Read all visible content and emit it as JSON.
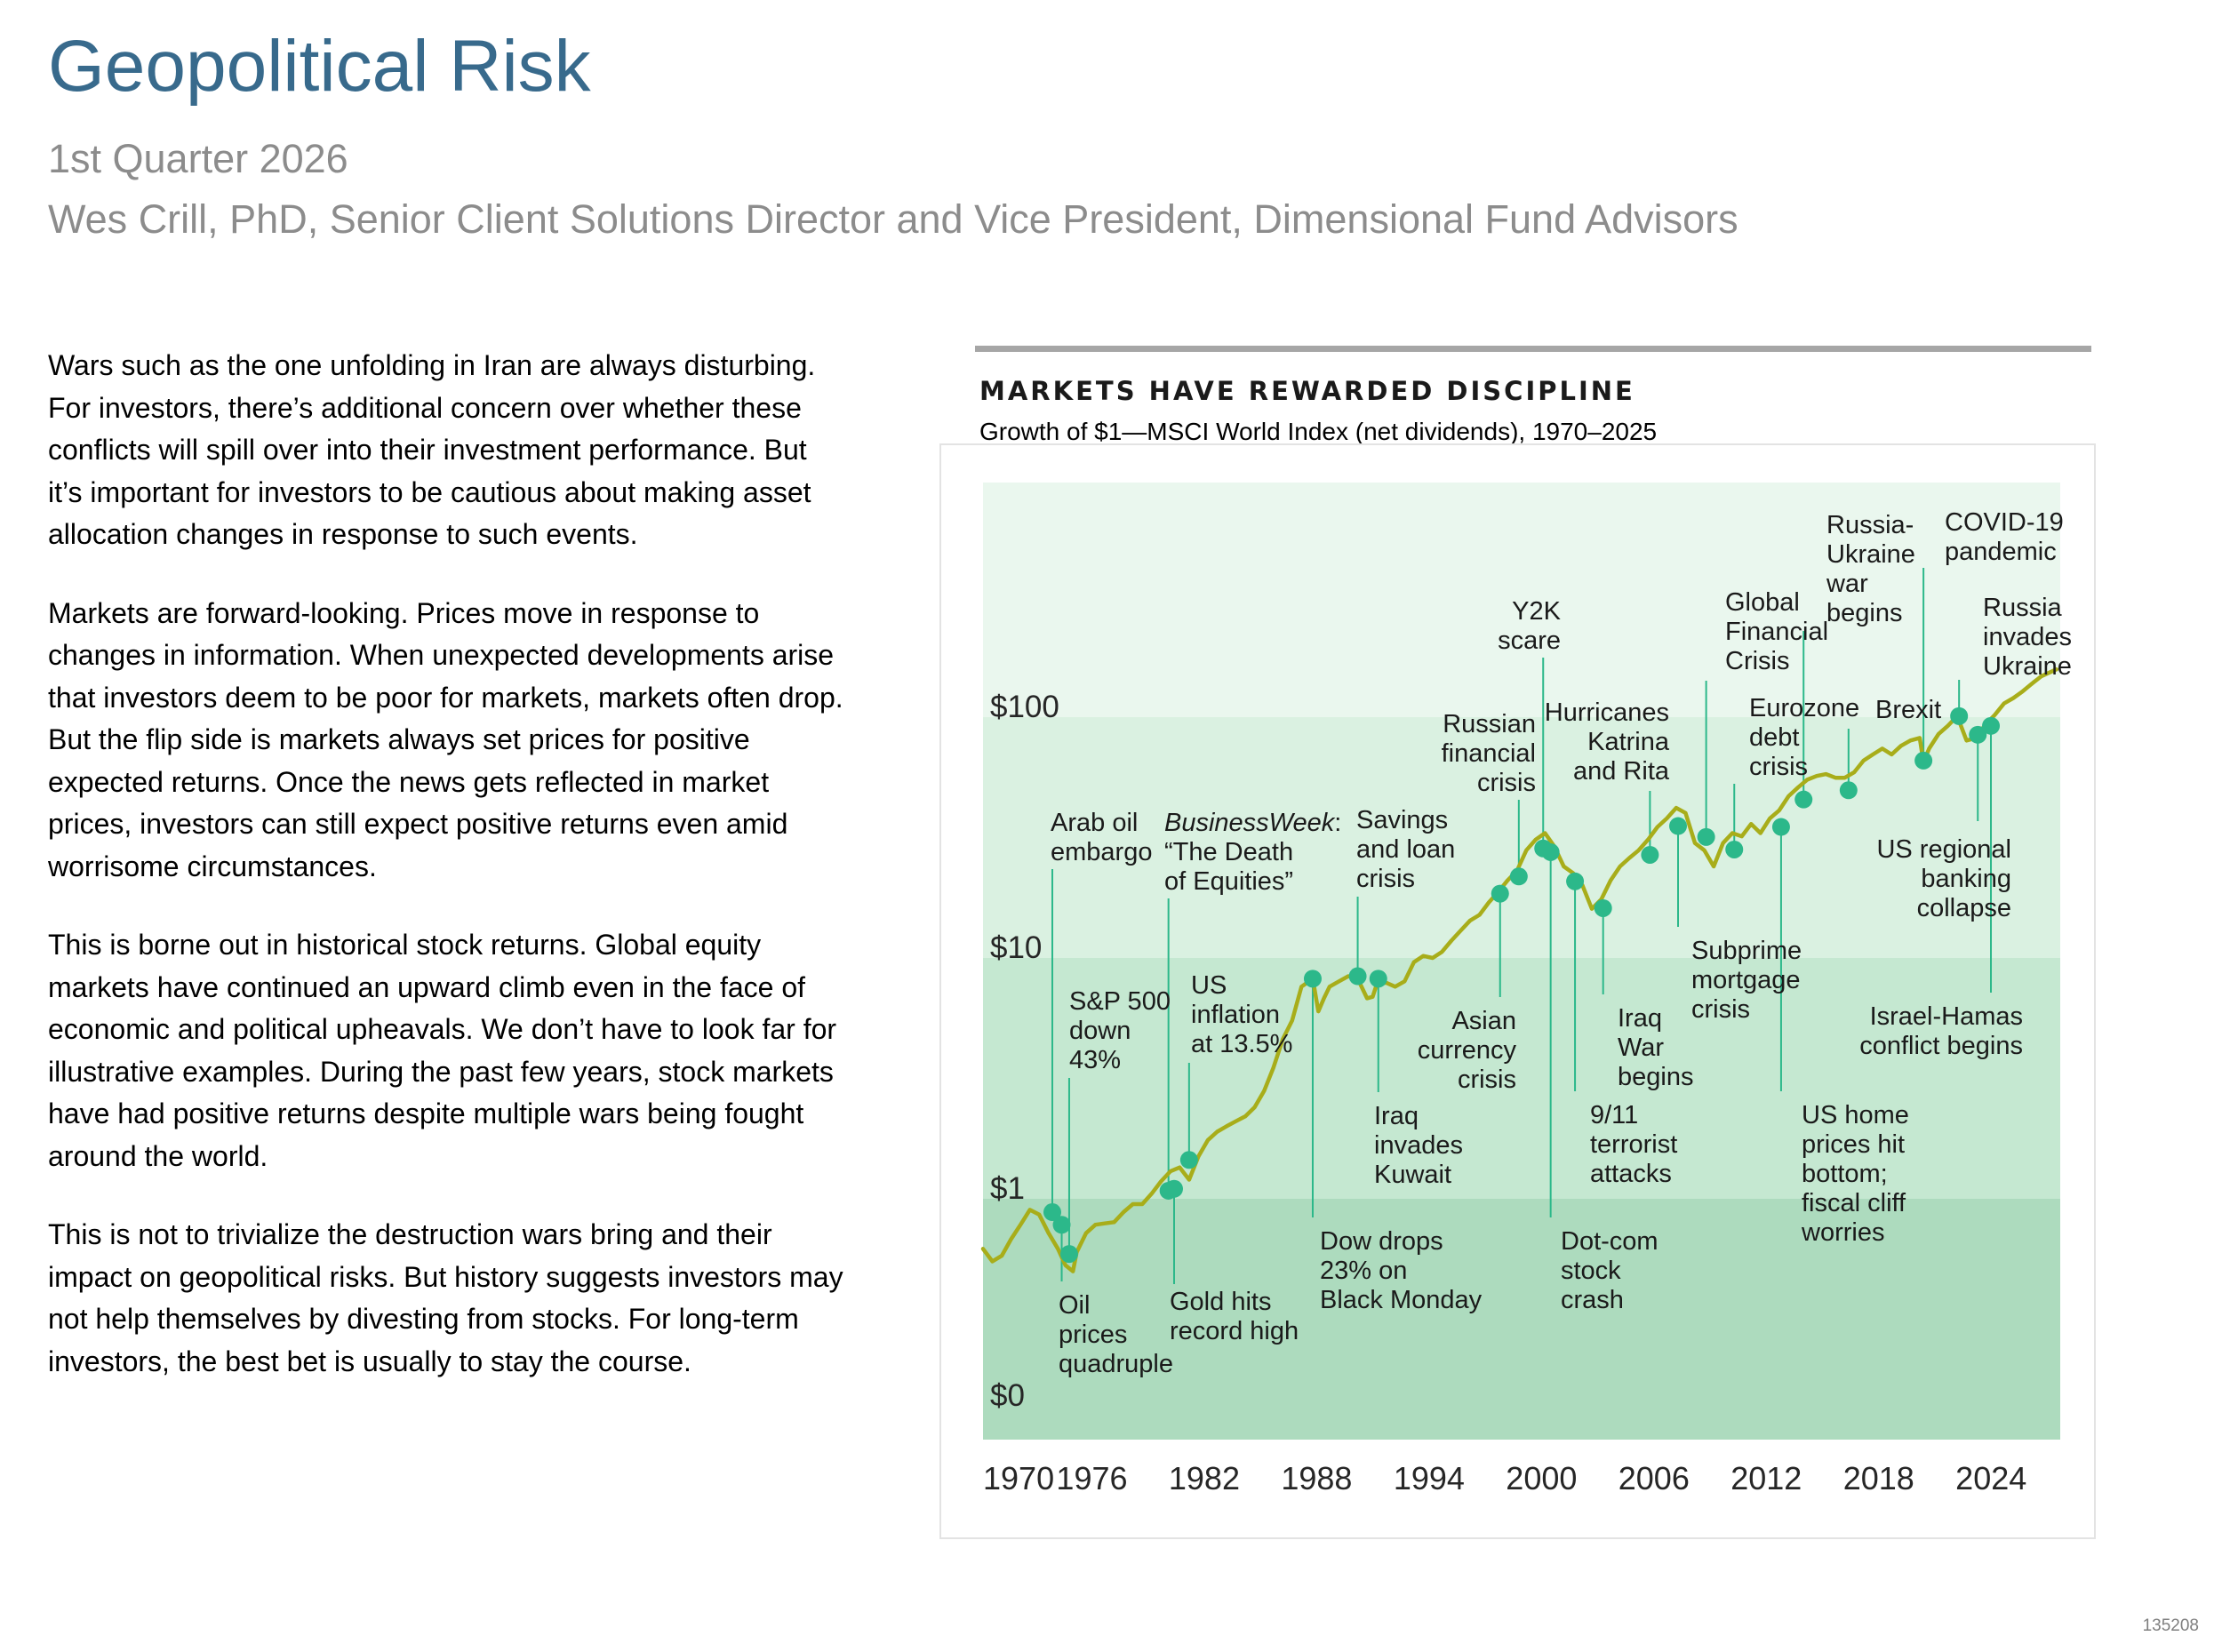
{
  "header": {
    "title": "Geopolitical Risk",
    "subtitle": "1st Quarter 2026",
    "byline": "Wes Crill, PhD, Senior Client Solutions Director and Vice President, Dimensional Fund Advisors"
  },
  "body": {
    "paragraphs": [
      "Wars such as the one unfolding in Iran are always disturbing. For investors, there’s additional concern over whether these conflicts will spill over into their investment performance. But it’s important for investors to be cautious about making asset allocation changes in response to such events.",
      "Markets are forward-looking. Prices move in response to changes in information. When unexpected developments arise that investors deem to be poor for markets, markets often drop. But the flip side is markets always set prices for positive expected returns. Once the news gets reflected in market prices, investors can still expect positive returns even amid worrisome circumstances.",
      "This is borne out in historical stock returns. Global equity markets have continued an upward climb even in the face of economic and political upheavals. We don’t have to look far for illustrative examples. During the past few years, stock markets have had positive returns despite multiple wars being fought around the world.",
      "This is not to trivialize the destruction wars bring and their impact on geopolitical risks. But history suggests investors may not help themselves by divesting from stocks. For long-term investors, the best bet is usually to stay the course."
    ]
  },
  "chart": {
    "heading": "MARKETS HAVE REWARDED DISCIPLINE",
    "caption": "Growth of $1—MSCI World Index (net dividends), 1970–2025"
  },
  "footer": {
    "code": "135208"
  },
  "colors": {
    "line": "#a8ad1a",
    "marker": "#2cb88a",
    "leader": "#2cb88a",
    "band_top": "#eaf7ee",
    "band_2": "#daf1e1",
    "band_3": "#c5e8d1",
    "band_4": "#addbbe"
  },
  "chart_data": {
    "type": "line",
    "title": "MARKETS HAVE REWARDED DISCIPLINE",
    "subtitle": "Growth of $1—MSCI World Index (net dividends), 1970–2025",
    "xlabel": "",
    "ylabel": "",
    "scale": "log",
    "xlim": [
      1970,
      2027.5
    ],
    "y_tick_labels": [
      "$0",
      "$1",
      "$10",
      "$100"
    ],
    "x_tick_labels": [
      "1970",
      "1976",
      "1982",
      "1988",
      "1994",
      "2000",
      "2006",
      "2012",
      "2018",
      "2024"
    ],
    "series": [
      {
        "name": "MSCI World Index (net dividends)",
        "x": [
          1970.0,
          1970.5,
          1971.0,
          1971.5,
          1972.0,
          1972.5,
          1973.0,
          1973.5,
          1974.0,
          1974.4,
          1974.8,
          1975.0,
          1975.5,
          1976.0,
          1976.5,
          1977.0,
          1977.5,
          1978.0,
          1978.5,
          1979.0,
          1979.5,
          1980.0,
          1980.5,
          1981.0,
          1981.5,
          1982.0,
          1982.5,
          1983.0,
          1983.5,
          1984.0,
          1984.5,
          1985.0,
          1985.5,
          1986.0,
          1986.5,
          1987.0,
          1987.6,
          1987.9,
          1988.2,
          1988.5,
          1989.0,
          1989.5,
          1990.0,
          1990.5,
          1990.8,
          1991.0,
          1991.5,
          1992.0,
          1992.5,
          1993.0,
          1993.5,
          1994.0,
          1994.5,
          1995.0,
          1995.5,
          1996.0,
          1996.5,
          1997.0,
          1997.5,
          1998.0,
          1998.5,
          1999.0,
          1999.5,
          2000.0,
          2000.5,
          2001.0,
          2001.5,
          2002.0,
          2002.5,
          2003.0,
          2003.5,
          2004.0,
          2004.5,
          2005.0,
          2005.5,
          2006.0,
          2006.5,
          2007.0,
          2007.5,
          2008.0,
          2008.5,
          2009.0,
          2009.5,
          2010.0,
          2010.5,
          2011.0,
          2011.5,
          2012.0,
          2012.5,
          2013.0,
          2013.5,
          2014.0,
          2014.5,
          2015.0,
          2015.5,
          2016.0,
          2016.5,
          2017.0,
          2017.5,
          2018.0,
          2018.5,
          2019.0,
          2019.5,
          2020.0,
          2020.2,
          2020.5,
          2021.0,
          2021.5,
          2022.0,
          2022.5,
          2023.0,
          2023.5,
          2024.0,
          2024.5,
          2025.0,
          2025.5,
          2026.0,
          2026.5,
          2027.3
        ],
        "values": [
          0.62,
          0.55,
          0.58,
          0.68,
          0.78,
          0.9,
          0.86,
          0.72,
          0.62,
          0.53,
          0.5,
          0.6,
          0.72,
          0.78,
          0.79,
          0.8,
          0.88,
          0.95,
          0.95,
          1.05,
          1.18,
          1.3,
          1.35,
          1.2,
          1.5,
          1.75,
          1.9,
          2.0,
          2.1,
          2.2,
          2.4,
          2.8,
          3.5,
          4.6,
          5.5,
          7.6,
          8.2,
          6.0,
          6.8,
          7.6,
          8.0,
          8.4,
          8.2,
          6.8,
          6.9,
          7.7,
          7.9,
          7.6,
          8.0,
          9.6,
          10.2,
          10.0,
          10.6,
          11.8,
          13.0,
          14.3,
          15.1,
          17.0,
          18.8,
          21.0,
          23.0,
          28.0,
          31.0,
          33.0,
          29.0,
          24.0,
          22.5,
          20.0,
          16.0,
          17.5,
          21.0,
          24.0,
          26.0,
          28.0,
          31.0,
          35.0,
          38.0,
          42.0,
          40.0,
          30.0,
          28.0,
          24.0,
          30.0,
          33.0,
          32.0,
          36.0,
          33.0,
          38.0,
          41.0,
          47.0,
          51.0,
          55.0,
          57.0,
          58.0,
          56.0,
          56.0,
          59.0,
          66.0,
          70.0,
          74.0,
          70.0,
          76.0,
          80.0,
          82.0,
          65.0,
          74.0,
          85.0,
          92.0,
          101.0,
          80.0,
          82.0,
          93.0,
          102.0,
          114.0,
          120.0,
          128.0,
          138.0,
          148.0,
          158.0
        ]
      }
    ],
    "events": [
      {
        "year": 1973.7,
        "value": 0.88,
        "label": [
          "Arab oil",
          "embargo"
        ]
      },
      {
        "year": 1974.2,
        "value": 0.78,
        "label": [
          "Oil",
          "prices",
          "quadruple"
        ]
      },
      {
        "year": 1974.6,
        "value": 0.59,
        "label": [
          "S&P 500",
          "down",
          "43%"
        ]
      },
      {
        "year": 1979.9,
        "value": 1.08,
        "label": [
          "BusinessWeek:",
          "“The Death",
          "of Equities”"
        ]
      },
      {
        "year": 1980.2,
        "value": 1.1,
        "label": [
          "Gold hits",
          "record high"
        ]
      },
      {
        "year": 1981.0,
        "value": 1.45,
        "label": [
          "US",
          "inflation",
          "at 13.5%"
        ]
      },
      {
        "year": 1987.6,
        "value": 8.2,
        "label": [
          "Dow drops",
          "23% on",
          "Black Monday"
        ]
      },
      {
        "year": 1990.0,
        "value": 8.4,
        "label": [
          "Savings",
          "and loan",
          "crisis"
        ]
      },
      {
        "year": 1991.1,
        "value": 8.2,
        "label": [
          "Iraq",
          "invades",
          "Kuwait"
        ]
      },
      {
        "year": 1997.6,
        "value": 18.5,
        "label": [
          "Asian",
          "currency",
          "crisis"
        ]
      },
      {
        "year": 1998.6,
        "value": 21.8,
        "label": [
          "Russian",
          "financial",
          "crisis"
        ]
      },
      {
        "year": 1999.9,
        "value": 28.5,
        "label": [
          "Y2K",
          "scare"
        ]
      },
      {
        "year": 2000.3,
        "value": 27.5,
        "label": [
          "Dot-com",
          "stock",
          "crash"
        ]
      },
      {
        "year": 2001.6,
        "value": 20.8,
        "label": [
          "9/11",
          "terrorist",
          "attacks"
        ]
      },
      {
        "year": 2003.1,
        "value": 16.1,
        "label": [
          "Iraq",
          "War",
          "begins"
        ]
      },
      {
        "year": 2005.6,
        "value": 26.8,
        "label": [
          "Hurricanes",
          "Katrina",
          "and Rita"
        ]
      },
      {
        "year": 2007.1,
        "value": 35.3,
        "label": [
          "Subprime",
          "mortgage",
          "crisis"
        ]
      },
      {
        "year": 2008.6,
        "value": 31.8,
        "label": [
          "Global",
          "Financial",
          "Crisis"
        ]
      },
      {
        "year": 2010.1,
        "value": 28.2,
        "label": [
          "Eurozone",
          "debt",
          "crisis"
        ]
      },
      {
        "year": 2012.6,
        "value": 35.0,
        "label": [
          "US home",
          "prices hit",
          "bottom;",
          "fiscal cliff",
          "worries"
        ]
      },
      {
        "year": 2013.8,
        "value": 45.5,
        "label": [
          "Russia-",
          "Ukraine",
          "war",
          "begins"
        ]
      },
      {
        "year": 2016.2,
        "value": 49.7,
        "label": [
          "Brexit"
        ]
      },
      {
        "year": 2020.2,
        "value": 66.0,
        "label": [
          "COVID-19",
          "pandemic"
        ]
      },
      {
        "year": 2022.1,
        "value": 101.0,
        "label": [
          "Russia",
          "invades",
          "Ukraine"
        ]
      },
      {
        "year": 2023.1,
        "value": 84.5,
        "label": [
          "US regional",
          "banking",
          "collapse"
        ]
      },
      {
        "year": 2023.8,
        "value": 92.0,
        "label": [
          "Israel-Hamas",
          "conflict begins"
        ]
      }
    ]
  }
}
